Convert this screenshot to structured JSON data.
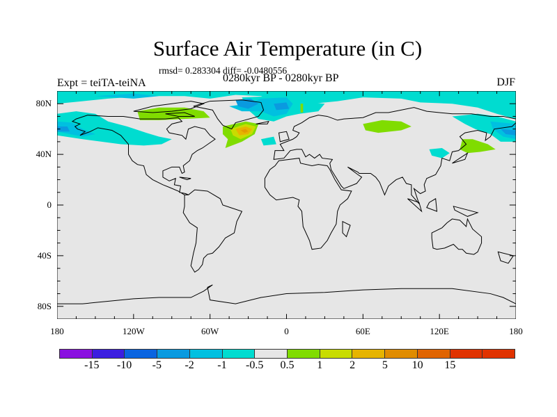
{
  "title": "Surface Air Temperature (in C)",
  "stats": "rmsd= 0.283304 diff= -0.0480556",
  "left_label": "Expt = teiTA-teiNA",
  "center_label": "0280kyr BP - 0280kyr BP",
  "right_label": "DJF",
  "map": {
    "lon_range": [
      -180,
      180
    ],
    "lat_range": [
      -90,
      90
    ],
    "background_color": "#e6e6e6",
    "x_ticks": [
      {
        "lon": -180,
        "label": "180"
      },
      {
        "lon": -120,
        "label": "120W"
      },
      {
        "lon": -60,
        "label": "60W"
      },
      {
        "lon": 0,
        "label": "0"
      },
      {
        "lon": 60,
        "label": "60E"
      },
      {
        "lon": 120,
        "label": "120E"
      },
      {
        "lon": 180,
        "label": "180"
      }
    ],
    "y_ticks": [
      {
        "lat": 80,
        "label": "80N"
      },
      {
        "lat": 40,
        "label": "40N"
      },
      {
        "lat": 0,
        "label": "0"
      },
      {
        "lat": -40,
        "label": "40S"
      },
      {
        "lat": -80,
        "label": "80S"
      }
    ]
  },
  "colorbar": {
    "colors": [
      "#8a10e0",
      "#3c1ee0",
      "#0a64e0",
      "#0a9ae0",
      "#00c0e0",
      "#00dcd0",
      "#e6e6e6",
      "#80dc00",
      "#c8dc00",
      "#e6b400",
      "#e08c00",
      "#e06400",
      "#e03200"
    ],
    "extra_color": "#e03200",
    "labels": [
      "-15",
      "-10",
      "-5",
      "-2",
      "-1",
      "-0.5",
      "0.5",
      "1",
      "2",
      "5",
      "10",
      "15"
    ]
  }
}
